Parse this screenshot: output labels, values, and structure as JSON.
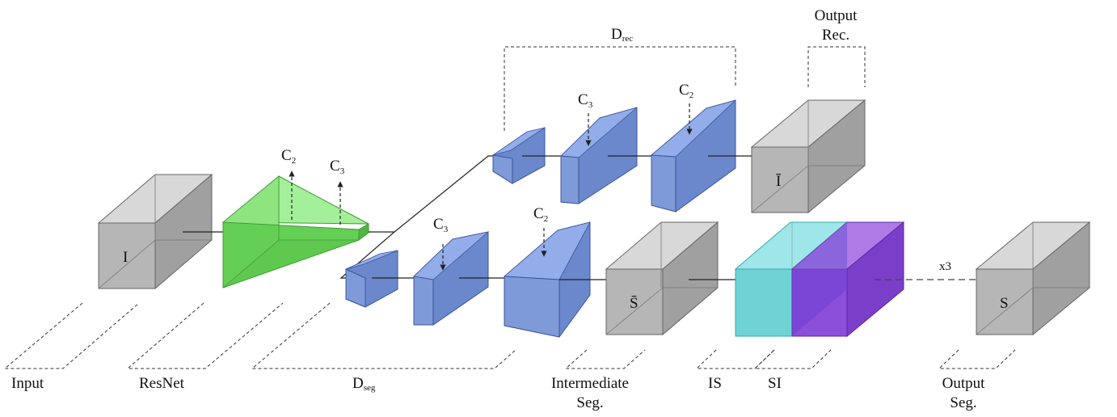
{
  "labels": {
    "input": "Input",
    "resnet": "ResNet",
    "d_seg_main": "D",
    "d_seg_sub": "seg",
    "intermediate_seg_line1": "Intermediate",
    "intermediate_seg_line2": "Seg.",
    "is": "IS",
    "si": "SI",
    "output_seg_line1": "Output",
    "output_seg_line2": "Seg.",
    "d_rec_main": "D",
    "d_rec_sub": "rec",
    "output_rec_line1": "Output",
    "output_rec_line2": "Rec.",
    "repeat": "x3"
  },
  "symbols": {
    "input_image": "I",
    "reconstructed_image": "Ī",
    "intermediate_seg": "S̄",
    "output_seg": "S"
  },
  "skips": {
    "c2_main": "C",
    "c2_sub": "2",
    "c3_main": "C",
    "c3_sub": "3"
  },
  "colors": {
    "gray_front": "#b4b4b4",
    "gray_top": "#d6d6d6",
    "gray_side": "#9a9a9a",
    "blue": "#7a95d4",
    "green": "#7ee06a",
    "cyan": "#6fd3d6",
    "purple": "#8b4fd9"
  }
}
